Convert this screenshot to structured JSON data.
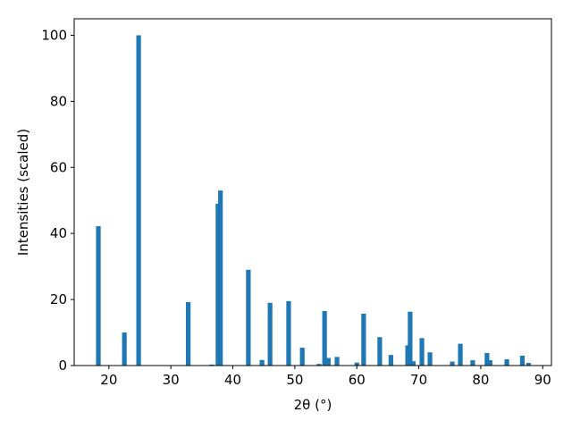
{
  "chart_data": {
    "type": "bar",
    "xlabel": "2θ (°)",
    "ylabel": "Intensities (scaled)",
    "x": [
      18.3,
      22.5,
      24.8,
      32.8,
      36.6,
      37.6,
      38.0,
      42.5,
      44.7,
      46.0,
      49.0,
      51.2,
      53.9,
      54.8,
      55.4,
      56.8,
      60.0,
      61.1,
      63.7,
      65.5,
      68.2,
      68.6,
      69.1,
      70.5,
      71.8,
      75.4,
      76.7,
      78.7,
      81.0,
      81.5,
      84.2,
      86.7,
      87.7
    ],
    "values": [
      42.2,
      10,
      100,
      19.2,
      0.3,
      49,
      53,
      29,
      1.7,
      19,
      19.5,
      5.4,
      0.5,
      16.5,
      2.3,
      2.6,
      0.9,
      15.7,
      8.6,
      3.2,
      6.1,
      16.3,
      1.3,
      8.3,
      4,
      1.2,
      6.6,
      1.6,
      3.8,
      1.6,
      1.9,
      3.0,
      0.8
    ],
    "color": "#1f77b4",
    "xlim": [
      14.4,
      91.4
    ],
    "ylim": [
      0,
      105
    ],
    "xticks": [
      20,
      30,
      40,
      50,
      60,
      70,
      80,
      90
    ],
    "yticks": [
      0,
      20,
      40,
      60,
      80,
      100
    ],
    "grid": false
  }
}
